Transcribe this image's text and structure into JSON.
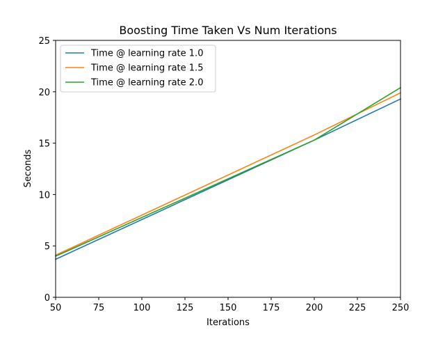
{
  "chart_data": {
    "type": "line",
    "title": "Boosting Time Taken Vs Num Iterations",
    "xlabel": "Iterations",
    "ylabel": "Seconds",
    "xlim": [
      50,
      250
    ],
    "ylim": [
      0,
      25
    ],
    "xticks": [
      50,
      75,
      100,
      125,
      150,
      175,
      200,
      225,
      250
    ],
    "yticks": [
      0,
      5,
      10,
      15,
      20,
      25
    ],
    "grid": false,
    "legend_position": "upper-left",
    "x": [
      50,
      200,
      250
    ],
    "series": [
      {
        "name": "Time @ learning rate 1.0",
        "color": "#1f77b4",
        "values": [
          3.7,
          15.3,
          19.3
        ]
      },
      {
        "name": "Time @ learning rate 1.5",
        "color": "#ff7f0e",
        "values": [
          4.1,
          15.8,
          19.9
        ]
      },
      {
        "name": "Time @ learning rate 2.0",
        "color": "#2ca02c",
        "values": [
          4.0,
          15.3,
          20.4
        ]
      }
    ]
  }
}
